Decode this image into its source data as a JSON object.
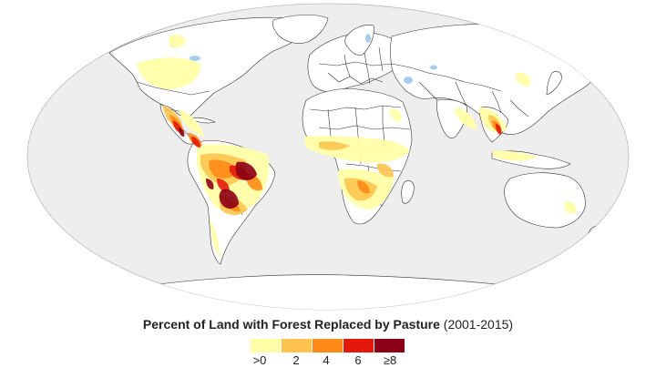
{
  "map": {
    "title_bold": "Percent of Land with Forest Replaced by Pasture",
    "title_period": "(2001-2015)",
    "ocean_color": "#eeeeee",
    "land_color": "#ffffff",
    "water_color": "#a8cdf0",
    "border_color": "#333333"
  },
  "legend": {
    "swatches": [
      {
        "color": "#ffffa8"
      },
      {
        "color": "#fec44f"
      },
      {
        "color": "#fe8b17"
      },
      {
        "color": "#e31a0b"
      },
      {
        "color": "#8b0015"
      }
    ],
    "labels": [
      ">0",
      "2",
      "4",
      "6",
      "≥8"
    ]
  }
}
